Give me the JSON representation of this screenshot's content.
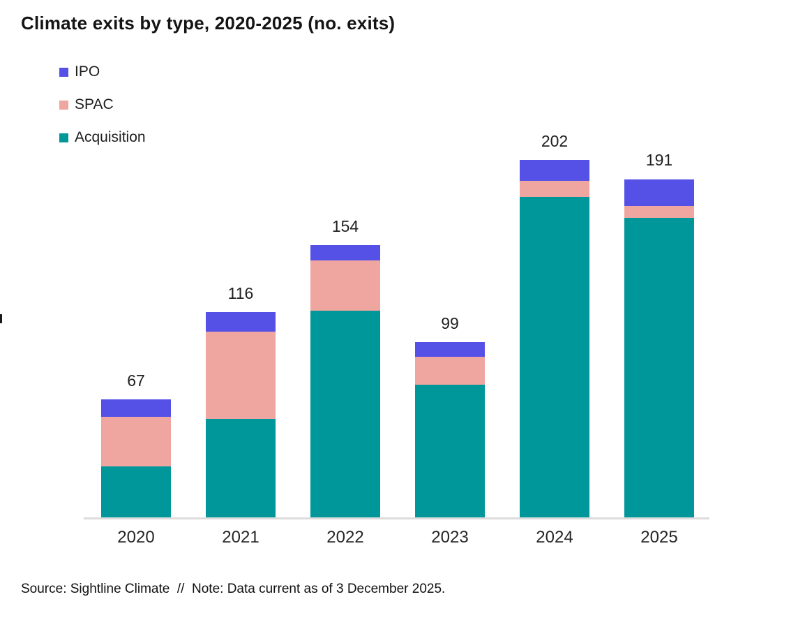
{
  "page": {
    "title": "Climate exits by type, 2020-2025 (no. exits)",
    "source_note": "Source: Sightline Climate  //  Note: Data current as of 3 December 2025."
  },
  "colors": {
    "ipo": "#5551E6",
    "spac": "#F0A6A0",
    "acquisition": "#00979B",
    "axis_line": "#DCDCDC",
    "title_text": "#141414",
    "label_text": "#1F1F1F"
  },
  "legend": {
    "items": [
      {
        "label": "IPO",
        "color_key": "ipo"
      },
      {
        "label": "SPAC",
        "color_key": "spac"
      },
      {
        "label": "Acquisition",
        "color_key": "acquisition"
      }
    ]
  },
  "chart_data": {
    "type": "bar",
    "stacked": true,
    "title": "Climate exits by type, 2020-2025 (no. exits)",
    "categories": [
      "2020",
      "2021",
      "2022",
      "2023",
      "2024",
      "2025"
    ],
    "series": [
      {
        "name": "Acquisition",
        "color_key": "acquisition",
        "values": [
          29,
          56,
          117,
          75,
          181,
          169
        ]
      },
      {
        "name": "SPAC",
        "color_key": "spac",
        "values": [
          28,
          49,
          28,
          16,
          9,
          7
        ]
      },
      {
        "name": "IPO",
        "color_key": "ipo",
        "values": [
          10,
          11,
          9,
          8,
          12,
          15
        ]
      }
    ],
    "totals": [
      67,
      116,
      154,
      99,
      202,
      191
    ],
    "xlabel": "",
    "ylabel": "",
    "ylim": [
      0,
      220
    ],
    "grid": false,
    "legend_position": "top-left",
    "value_labels": "total-above-each-bar"
  }
}
